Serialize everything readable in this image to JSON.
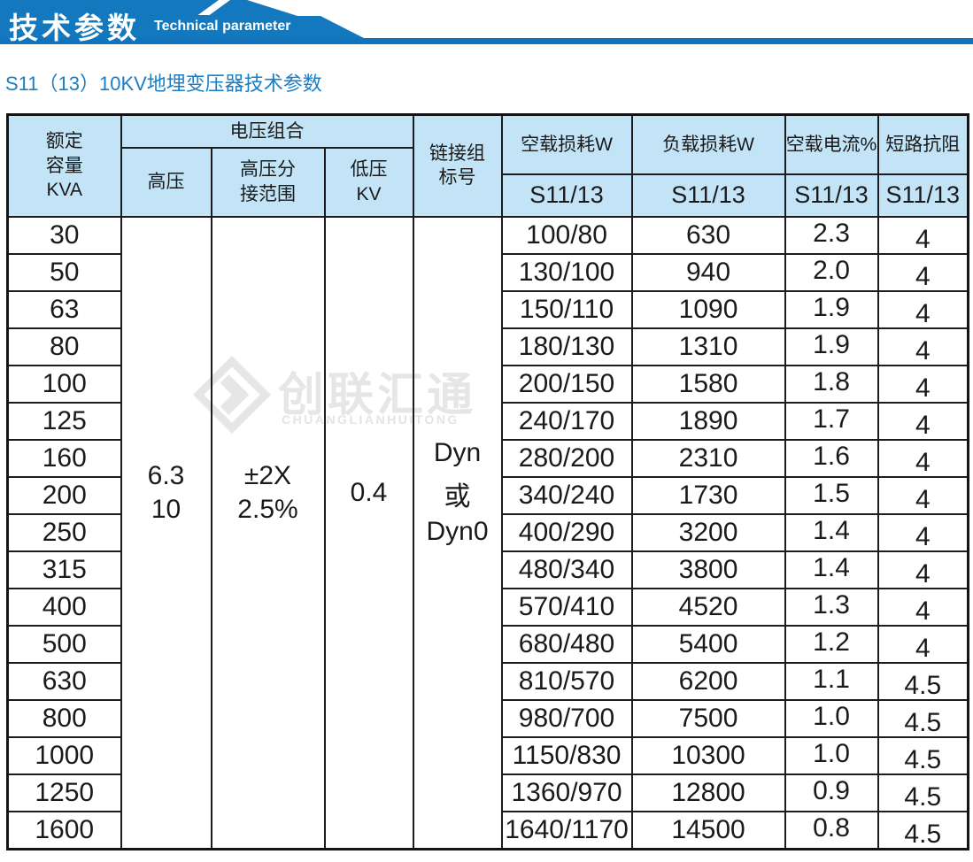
{
  "banner": {
    "title_cn": "技术参数",
    "title_en": "Technical parameter"
  },
  "subtitle": "S11（13）10KV地埋变压器技术参数",
  "watermark": {
    "cn": "创联汇通",
    "en": "CHUANGLIANHUITONG"
  },
  "colors": {
    "banner_blue": "#1478be",
    "strip_blue": "#1373ba",
    "subtitle_blue": "#1b7ec5",
    "header_bg": "#c3e4f7",
    "border": "#1c1c1c",
    "watermark_gray": "#e6e6e6"
  },
  "table": {
    "header": {
      "capacity": [
        "额定",
        "容量",
        "KVA"
      ],
      "voltage_group": "电压组合",
      "hv": "高压",
      "hv_tap": [
        "高压分",
        "接范围"
      ],
      "lv": [
        "低压",
        "KV"
      ],
      "connection": [
        "链接组",
        "标号"
      ],
      "no_load_loss": "空载损耗W",
      "load_loss": "负载损耗W",
      "no_load_current": "空载电流%",
      "impedance": "短路抗阻",
      "sub": "S11/13"
    },
    "merged": {
      "hv": [
        "6.3",
        "10"
      ],
      "hv_tap": [
        "±2X",
        "2.5%"
      ],
      "lv": "0.4",
      "connection": [
        "Dyn",
        "或",
        "Dyn0"
      ]
    },
    "rows": [
      {
        "kva": "30",
        "no_load": "100/80",
        "load": "630",
        "current": "2.3",
        "impedance": "4"
      },
      {
        "kva": "50",
        "no_load": "130/100",
        "load": "940",
        "current": "2.0",
        "impedance": "4"
      },
      {
        "kva": "63",
        "no_load": "150/110",
        "load": "1090",
        "current": "1.9",
        "impedance": "4"
      },
      {
        "kva": "80",
        "no_load": "180/130",
        "load": "1310",
        "current": "1.9",
        "impedance": "4"
      },
      {
        "kva": "100",
        "no_load": "200/150",
        "load": "1580",
        "current": "1.8",
        "impedance": "4"
      },
      {
        "kva": "125",
        "no_load": "240/170",
        "load": "1890",
        "current": "1.7",
        "impedance": "4"
      },
      {
        "kva": "160",
        "no_load": "280/200",
        "load": "2310",
        "current": "1.6",
        "impedance": "4"
      },
      {
        "kva": "200",
        "no_load": "340/240",
        "load": "1730",
        "current": "1.5",
        "impedance": "4"
      },
      {
        "kva": "250",
        "no_load": "400/290",
        "load": "3200",
        "current": "1.4",
        "impedance": "4"
      },
      {
        "kva": "315",
        "no_load": "480/340",
        "load": "3800",
        "current": "1.4",
        "impedance": "4"
      },
      {
        "kva": "400",
        "no_load": "570/410",
        "load": "4520",
        "current": "1.3",
        "impedance": "4"
      },
      {
        "kva": "500",
        "no_load": "680/480",
        "load": "5400",
        "current": "1.2",
        "impedance": "4"
      },
      {
        "kva": "630",
        "no_load": "810/570",
        "load": "6200",
        "current": "1.1",
        "impedance": "4.5"
      },
      {
        "kva": "800",
        "no_load": "980/700",
        "load": "7500",
        "current": "1.0",
        "impedance": "4.5"
      },
      {
        "kva": "1000",
        "no_load": "1150/830",
        "load": "10300",
        "current": "1.0",
        "impedance": "4.5"
      },
      {
        "kva": "1250",
        "no_load": "1360/970",
        "load": "12800",
        "current": "0.9",
        "impedance": "4.5"
      },
      {
        "kva": "1600",
        "no_load": "1640/1170",
        "load": "14500",
        "current": "0.8",
        "impedance": "4.5"
      }
    ]
  }
}
